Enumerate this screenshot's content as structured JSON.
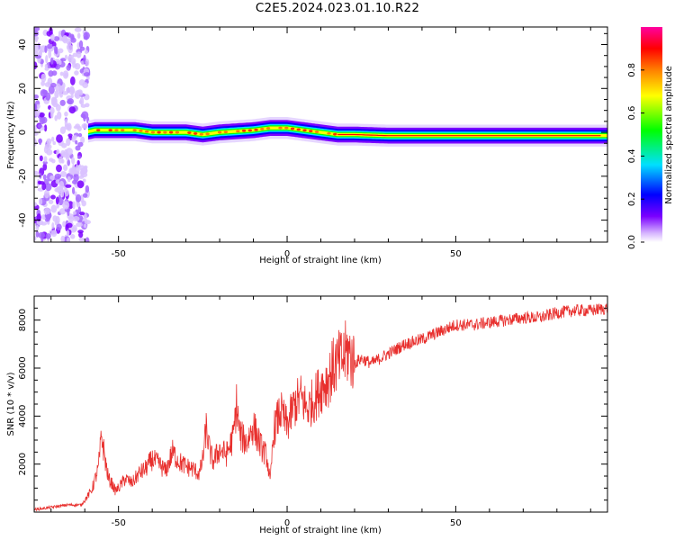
{
  "title": "C2E5.2024.023.01.10.R22",
  "chart_data": [
    {
      "type": "heatmap",
      "xlabel": "Height of straight line (km)",
      "ylabel": "Frequency (Hz)",
      "xlim": [
        -75,
        95
      ],
      "ylim": [
        -50,
        48
      ],
      "xticks": [
        -50,
        0,
        50
      ],
      "yticks": [
        -40,
        -20,
        0,
        20,
        40
      ],
      "colorbar": {
        "label": "Normalized spectral amplitude",
        "range": [
          0.0,
          1.0
        ],
        "ticks": [
          "0.0",
          "0.2",
          "0.4",
          "0.6",
          "0.8"
        ],
        "colormap": [
          "#ffffff",
          "#7a00ff",
          "#0000ff",
          "#00e0ff",
          "#00ff00",
          "#ffff00",
          "#ff8000",
          "#ff0000",
          "#ff00a0"
        ]
      },
      "ridge": {
        "x": [
          -75,
          -60,
          -57,
          -50,
          -45,
          -40,
          -30,
          -25,
          -20,
          -10,
          -5,
          0,
          5,
          10,
          15,
          20,
          30,
          40,
          50,
          60,
          70,
          80,
          95
        ],
        "y": [
          0,
          0,
          1,
          1,
          1,
          0,
          0,
          -1,
          0,
          1,
          2,
          2,
          1,
          0,
          -1,
          -1,
          -1.5,
          -1.5,
          -1.5,
          -1.5,
          -1.5,
          -1.5,
          -1.5
        ]
      },
      "noise_region_x": [
        -75,
        -59
      ]
    },
    {
      "type": "line",
      "xlabel": "Height of straight line (km)",
      "ylabel": "SNR (10 * v/v)",
      "xlim": [
        -75,
        95
      ],
      "ylim": [
        0,
        9000
      ],
      "xticks": [
        -50,
        0,
        50
      ],
      "yticks": [
        2000,
        4000,
        6000,
        8000
      ],
      "line_color": "#e8302e",
      "series": [
        {
          "x": [
            -75,
            -70,
            -65,
            -61,
            -58,
            -56,
            -55,
            -54,
            -53,
            -52,
            -51,
            -50,
            -48,
            -46,
            -44,
            -42,
            -40,
            -38,
            -36,
            -34,
            -32,
            -30,
            -28,
            -26,
            -25,
            -24,
            -23,
            -22,
            -20,
            -18,
            -16,
            -15,
            -14,
            -12,
            -10,
            -8,
            -6,
            -5,
            -4,
            -2,
            0,
            2,
            4,
            6,
            8,
            10,
            12,
            14,
            16,
            18,
            20,
            22,
            25,
            30,
            35,
            40,
            45,
            50,
            55,
            60,
            65,
            70,
            75,
            80,
            85,
            90,
            95
          ],
          "y": [
            100,
            200,
            300,
            300,
            900,
            1800,
            3200,
            2200,
            1400,
            1200,
            900,
            1000,
            1400,
            1200,
            1600,
            1800,
            2200,
            2000,
            1700,
            2500,
            2100,
            1900,
            1800,
            1600,
            2200,
            3500,
            2600,
            2100,
            2600,
            2400,
            3100,
            4500,
            3200,
            2900,
            3600,
            2800,
            2300,
            1200,
            3400,
            4200,
            3600,
            4400,
            4800,
            4300,
            4700,
            5200,
            5500,
            6100,
            6300,
            6700,
            6200,
            6400,
            6200,
            6600,
            7000,
            7200,
            7500,
            7800,
            7800,
            7900,
            8000,
            8100,
            8100,
            8300,
            8400,
            8400,
            8500
          ]
        }
      ]
    }
  ]
}
